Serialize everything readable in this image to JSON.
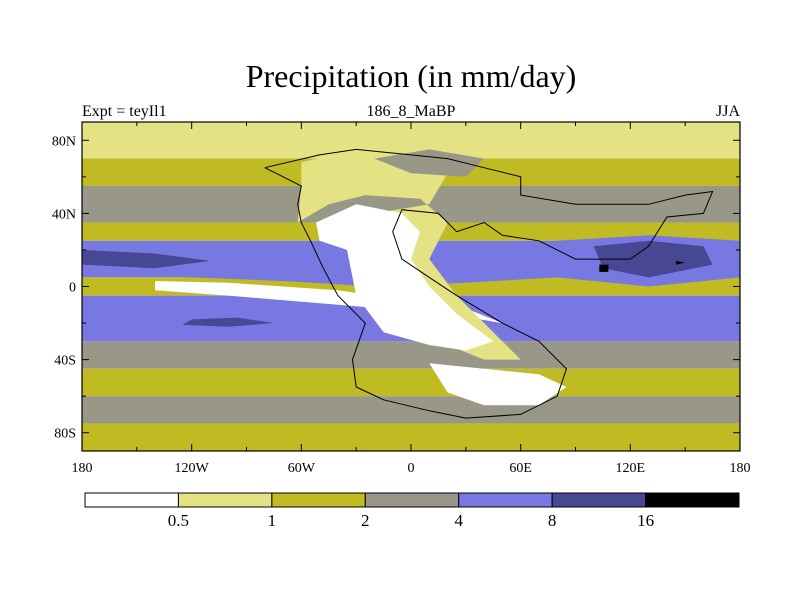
{
  "chart_data": {
    "type": "heatmap",
    "title": "Precipitation (in mm/day)",
    "left_label": "Expt = teyIl1",
    "center_label": "186_8_MaBP",
    "right_label": "JJA",
    "x_axis": {
      "range": [
        -180,
        180
      ],
      "ticks": [
        -180,
        -120,
        -60,
        0,
        60,
        120,
        180
      ],
      "tick_labels": [
        "180",
        "120W",
        "60W",
        "0",
        "60E",
        "120E",
        "180"
      ]
    },
    "y_axis": {
      "range": [
        -90,
        90
      ],
      "ticks": [
        80,
        40,
        0,
        -40,
        -80
      ],
      "tick_labels": [
        "80N",
        "40N",
        "0",
        "40S",
        "80S"
      ]
    },
    "colorbar": {
      "levels": [
        "0.5",
        "1",
        "2",
        "4",
        "8",
        "16"
      ],
      "colors": [
        "#ffffff",
        "#e4e282",
        "#c1bb23",
        "#999888",
        "#7878e3",
        "#474794",
        "#000000"
      ]
    },
    "zones": [
      {
        "lat": [
          70,
          90
        ],
        "bin": 1
      },
      {
        "lat": [
          55,
          70
        ],
        "bin": 2
      },
      {
        "lat": [
          35,
          55
        ],
        "bin": 3
      },
      {
        "lat": [
          25,
          35
        ],
        "bin": 2
      },
      {
        "lat": [
          5,
          25
        ],
        "bin": 4
      },
      {
        "lat": [
          -5,
          5
        ],
        "bin": 2
      },
      {
        "lat": [
          -30,
          -5
        ],
        "bin": 4
      },
      {
        "lat": [
          -45,
          -30
        ],
        "bin": 3
      },
      {
        "lat": [
          -60,
          -45
        ],
        "bin": 2
      },
      {
        "lat": [
          -75,
          -60
        ],
        "bin": 3
      },
      {
        "lat": [
          -90,
          -75
        ],
        "bin": 2
      }
    ],
    "features": [
      {
        "name": "tropical-rain-band",
        "points": [
          [
            -180,
            25
          ],
          [
            -120,
            22
          ],
          [
            -70,
            18
          ],
          [
            -20,
            15
          ],
          [
            30,
            20
          ],
          [
            80,
            25
          ],
          [
            130,
            28
          ],
          [
            180,
            25
          ],
          [
            180,
            5
          ],
          [
            130,
            0
          ],
          [
            80,
            5
          ],
          [
            30,
            2
          ],
          [
            -20,
            0
          ],
          [
            -70,
            3
          ],
          [
            -120,
            5
          ],
          [
            -180,
            8
          ]
        ],
        "bin": 4
      },
      {
        "name": "heavy-rain-core-north",
        "points": [
          [
            -180,
            20
          ],
          [
            -140,
            18
          ],
          [
            -110,
            14
          ],
          [
            -140,
            10
          ],
          [
            -180,
            12
          ]
        ],
        "bin": 5
      },
      {
        "name": "asian-monsoon-heavy",
        "points": [
          [
            100,
            22
          ],
          [
            130,
            25
          ],
          [
            160,
            22
          ],
          [
            165,
            12
          ],
          [
            130,
            5
          ],
          [
            105,
            10
          ]
        ],
        "bin": 5
      },
      {
        "name": "asian-monsoon-max",
        "points": [
          [
            103,
            12
          ],
          [
            108,
            12
          ],
          [
            108,
            8
          ],
          [
            103,
            8
          ]
        ],
        "bin": 6
      },
      {
        "name": "pacific-max",
        "points": [
          [
            145,
            14
          ],
          [
            150,
            13
          ],
          [
            145,
            12
          ]
        ],
        "bin": 6
      },
      {
        "name": "subtropical-dry-east-pacific",
        "points": [
          [
            -140,
            3
          ],
          [
            -100,
            2
          ],
          [
            -40,
            -2
          ],
          [
            0,
            -8
          ],
          [
            30,
            -12
          ],
          [
            50,
            -20
          ],
          [
            20,
            -15
          ],
          [
            -40,
            -10
          ],
          [
            -100,
            -5
          ],
          [
            -140,
            -2
          ]
        ],
        "bin": 0
      },
      {
        "name": "south-heavy-band",
        "points": [
          [
            -120,
            -18
          ],
          [
            -95,
            -17
          ],
          [
            -75,
            -20
          ],
          [
            -100,
            -22
          ],
          [
            -125,
            -21
          ]
        ],
        "bin": 5
      },
      {
        "name": "pangaea-interior-margin",
        "points": [
          [
            -60,
            68
          ],
          [
            -30,
            75
          ],
          [
            0,
            72
          ],
          [
            20,
            62
          ],
          [
            10,
            45
          ],
          [
            -20,
            40
          ],
          [
            -20,
            10
          ],
          [
            -5,
            -20
          ],
          [
            20,
            -32
          ],
          [
            40,
            -40
          ],
          [
            60,
            -40
          ],
          [
            45,
            -25
          ],
          [
            25,
            -5
          ],
          [
            10,
            15
          ],
          [
            20,
            35
          ],
          [
            5,
            48
          ],
          [
            -25,
            50
          ],
          [
            -45,
            45
          ],
          [
            -62,
            35
          ],
          [
            -60,
            55
          ]
        ],
        "bin": 1
      },
      {
        "name": "pangaea-dry-interior",
        "points": [
          [
            -52,
            35
          ],
          [
            -30,
            45
          ],
          [
            -5,
            40
          ],
          [
            5,
            30
          ],
          [
            0,
            15
          ],
          [
            10,
            0
          ],
          [
            25,
            -15
          ],
          [
            45,
            -30
          ],
          [
            30,
            -35
          ],
          [
            10,
            -32
          ],
          [
            -15,
            -25
          ],
          [
            -30,
            -5
          ],
          [
            -35,
            20
          ],
          [
            -50,
            25
          ]
        ],
        "bin": 0
      },
      {
        "name": "pangaea-south-dry",
        "points": [
          [
            10,
            -42
          ],
          [
            40,
            -45
          ],
          [
            70,
            -48
          ],
          [
            85,
            -55
          ],
          [
            70,
            -65
          ],
          [
            40,
            -65
          ],
          [
            20,
            -58
          ]
        ],
        "bin": 0
      },
      {
        "name": "north-gray-patch",
        "points": [
          [
            -20,
            70
          ],
          [
            10,
            75
          ],
          [
            40,
            70
          ],
          [
            30,
            60
          ],
          [
            0,
            62
          ]
        ],
        "bin": 3
      }
    ],
    "continent_outline": [
      [
        -80,
        65
      ],
      [
        -50,
        72
      ],
      [
        -30,
        75
      ],
      [
        0,
        72
      ],
      [
        20,
        70
      ],
      [
        40,
        65
      ],
      [
        60,
        60
      ],
      [
        60,
        50
      ],
      [
        90,
        45
      ],
      [
        130,
        45
      ],
      [
        150,
        50
      ],
      [
        165,
        52
      ],
      [
        160,
        40
      ],
      [
        140,
        38
      ],
      [
        130,
        22
      ],
      [
        120,
        15
      ],
      [
        90,
        15
      ],
      [
        70,
        25
      ],
      [
        50,
        28
      ],
      [
        40,
        35
      ],
      [
        25,
        30
      ],
      [
        15,
        40
      ],
      [
        -5,
        42
      ],
      [
        -10,
        30
      ],
      [
        -5,
        15
      ],
      [
        10,
        5
      ],
      [
        25,
        -5
      ],
      [
        50,
        -20
      ],
      [
        70,
        -30
      ],
      [
        85,
        -45
      ],
      [
        80,
        -60
      ],
      [
        60,
        -70
      ],
      [
        30,
        -72
      ],
      [
        10,
        -68
      ],
      [
        -15,
        -62
      ],
      [
        -30,
        -55
      ],
      [
        -32,
        -40
      ],
      [
        -25,
        -20
      ],
      [
        -40,
        -5
      ],
      [
        -48,
        10
      ],
      [
        -55,
        25
      ],
      [
        -60,
        35
      ],
      [
        -62,
        45
      ],
      [
        -60,
        55
      ],
      [
        -70,
        60
      ]
    ]
  }
}
